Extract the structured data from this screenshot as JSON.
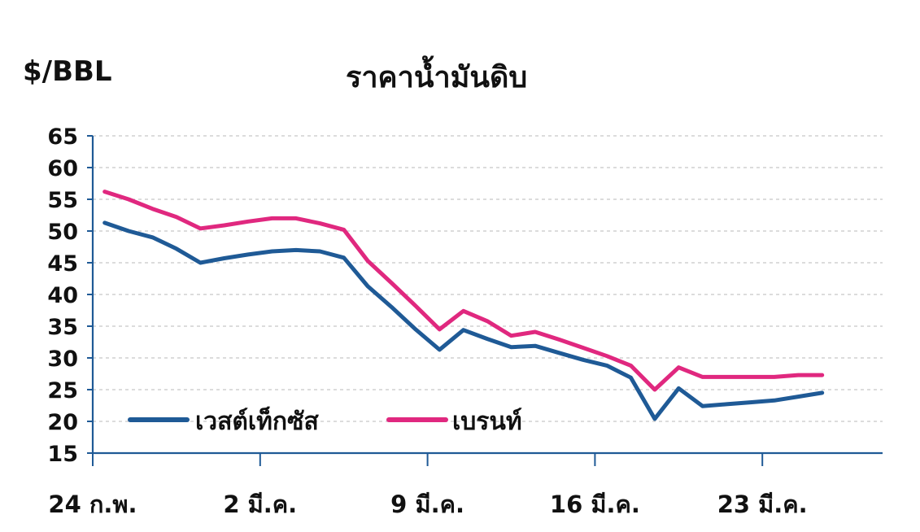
{
  "chart_data": {
    "type": "line",
    "title": "ราคาน้ำมันดิบ",
    "ylabel": "$/BBL",
    "xlabel": "",
    "ylim": [
      15,
      65
    ],
    "yticks": [
      15,
      20,
      25,
      30,
      35,
      40,
      45,
      50,
      55,
      60,
      65
    ],
    "x_tick_labels": [
      "24 ก.พ.",
      "2 มี.ค.",
      "9 มี.ค.",
      "16 มี.ค.",
      "23 มี.ค."
    ],
    "x_tick_days": [
      0,
      7,
      14,
      21,
      28
    ],
    "grid": true,
    "legend_position": "bottom-left",
    "series": [
      {
        "name": "เวสต์เท็กซัส",
        "color": "#1f5a96",
        "x": [
          0.5,
          1.5,
          2.5,
          3.5,
          4.5,
          5.5,
          6.5,
          7.5,
          8.5,
          9.5,
          10.5,
          11.5,
          12.5,
          13.5,
          14.5,
          15.5,
          16.5,
          17.5,
          18.5,
          19.5,
          20.5,
          21.5,
          22.5,
          23.5,
          24.5,
          25.5,
          26.5,
          27.5,
          28.5,
          29.5,
          30.5
        ],
        "values": [
          51.3,
          50.0,
          49.0,
          47.2,
          45.0,
          45.7,
          46.3,
          46.8,
          47.0,
          46.8,
          45.8,
          41.3,
          38.0,
          34.5,
          31.3,
          34.4,
          33.0,
          31.7,
          31.9,
          30.8,
          29.7,
          28.8,
          26.9,
          20.4,
          25.2,
          22.4,
          22.7,
          23.0,
          23.3,
          23.9,
          24.5
        ]
      },
      {
        "name": "เบรนท์",
        "color": "#e0287f",
        "x": [
          0.5,
          1.5,
          2.5,
          3.5,
          4.5,
          5.5,
          6.5,
          7.5,
          8.5,
          9.5,
          10.5,
          11.5,
          12.5,
          13.5,
          14.5,
          15.5,
          16.5,
          17.5,
          18.5,
          19.5,
          20.5,
          21.5,
          22.5,
          23.5,
          24.5,
          25.5,
          26.5,
          27.5,
          28.5,
          29.5,
          30.5
        ],
        "values": [
          56.2,
          55.0,
          53.5,
          52.2,
          50.4,
          50.9,
          51.5,
          52.0,
          52.0,
          51.2,
          50.2,
          45.3,
          41.8,
          38.2,
          34.5,
          37.4,
          35.8,
          33.5,
          34.1,
          32.9,
          31.6,
          30.3,
          28.8,
          25.0,
          28.5,
          27.0,
          27.0,
          27.0,
          27.0,
          27.3,
          27.3
        ]
      }
    ]
  }
}
